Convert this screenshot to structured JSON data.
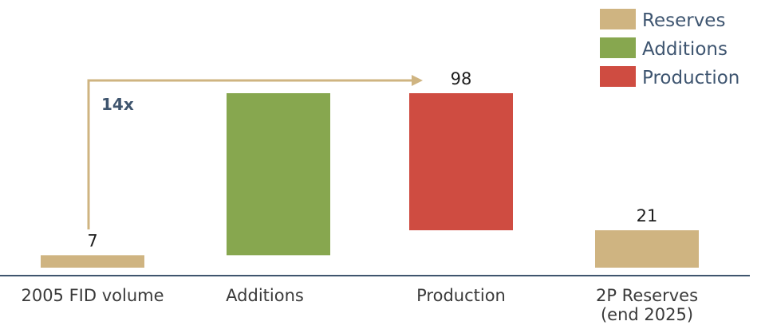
{
  "chart_data": {
    "type": "bar",
    "subtype": "waterfall",
    "categories": [
      "2005 FID volume",
      "Additions",
      "Production",
      "2P Reserves\n(end 2025)"
    ],
    "bars": [
      {
        "category": "2005 FID volume",
        "kind": "Reserves",
        "start": 0,
        "end": 7,
        "label": "7"
      },
      {
        "category": "Additions",
        "kind": "Additions",
        "start": 7,
        "end": 98,
        "label": ""
      },
      {
        "category": "Production",
        "kind": "Production",
        "start": 98,
        "end": 21,
        "label": "98"
      },
      {
        "category": "2P Reserves\n(end 2025)",
        "kind": "Reserves",
        "start": 0,
        "end": 21,
        "label": "21"
      }
    ],
    "legend": {
      "position": "top-right",
      "entries": [
        {
          "name": "Reserves",
          "color": "#cfb481"
        },
        {
          "name": "Additions",
          "color": "#87a74f"
        },
        {
          "name": "Production",
          "color": "#cf4c41"
        }
      ]
    },
    "annotation": {
      "text": "14x",
      "from_category": "2005 FID volume",
      "to_category": "Production",
      "color": "#3f556e",
      "arrow_color": "#cfb481"
    },
    "title": "",
    "xlabel": "",
    "ylabel": "",
    "ylim": [
      0,
      100
    ],
    "grid": false,
    "axis_color": "#3f556e"
  }
}
